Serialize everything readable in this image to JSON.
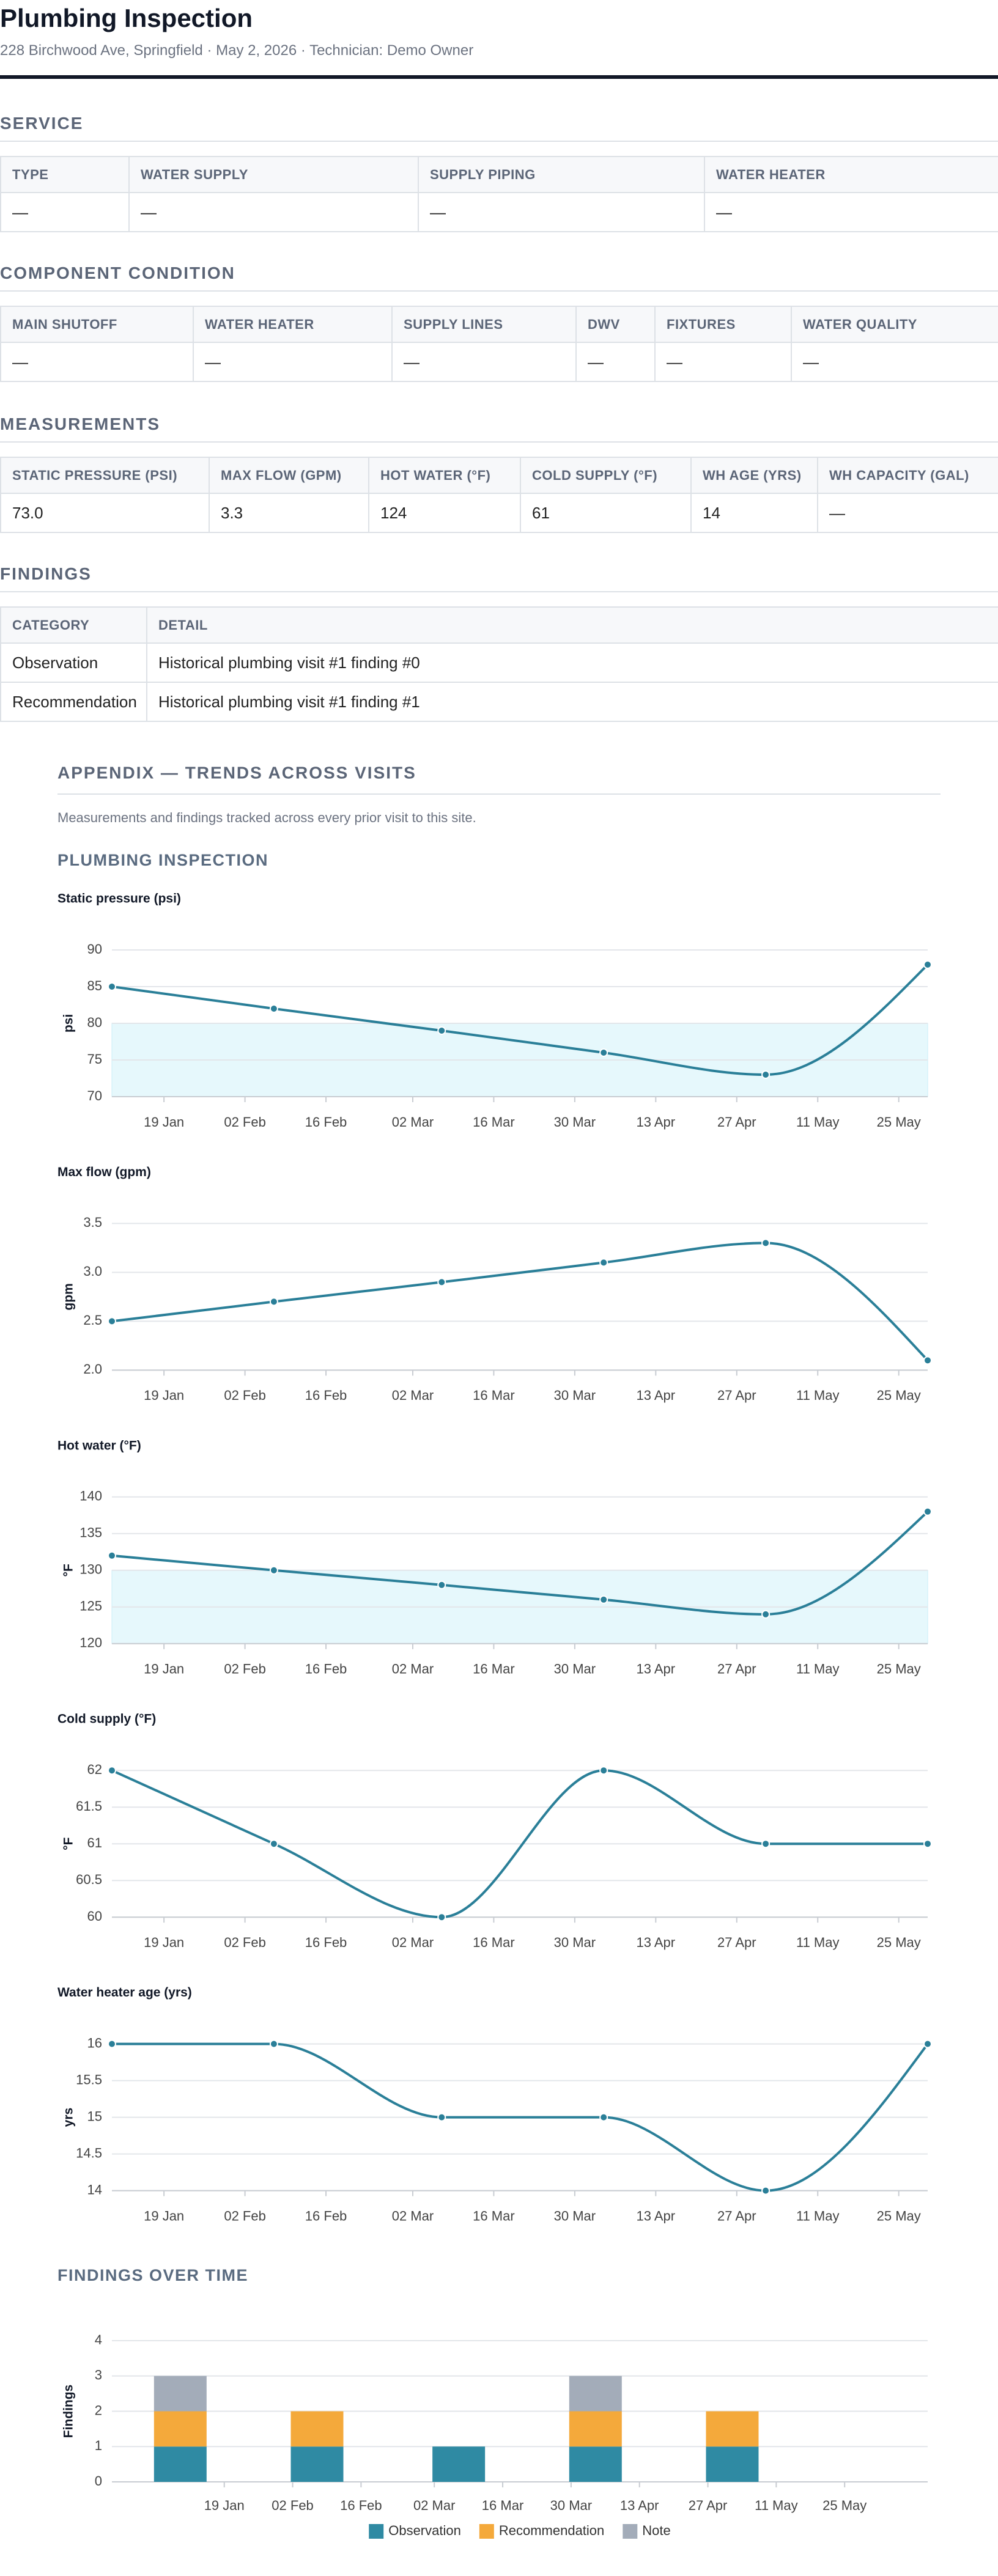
{
  "header": {
    "title": "Plumbing Inspection",
    "subtitle": "228 Birchwood Ave, Springfield · May 2, 2026 · Technician: Demo Owner"
  },
  "tables": [
    {
      "title": "SERVICE",
      "columns": [
        "TYPE",
        "WATER SUPPLY",
        "SUPPLY PIPING",
        "WATER HEATER"
      ],
      "rows": [
        [
          "—",
          "—",
          "—",
          "—"
        ]
      ]
    },
    {
      "title": "COMPONENT CONDITION",
      "columns": [
        "MAIN SHUTOFF",
        "WATER HEATER",
        "SUPPLY LINES",
        "DWV",
        "FIXTURES",
        "WATER QUALITY"
      ],
      "rows": [
        [
          "—",
          "—",
          "—",
          "—",
          "—",
          "—"
        ]
      ]
    },
    {
      "title": "MEASUREMENTS",
      "columns": [
        "STATIC PRESSURE (PSI)",
        "MAX FLOW (GPM)",
        "HOT WATER (°F)",
        "COLD SUPPLY (°F)",
        "WH AGE (YRS)",
        "WH CAPACITY (GAL)"
      ],
      "rows": [
        [
          "73.0",
          "3.3",
          "124",
          "61",
          "14",
          "—"
        ]
      ]
    },
    {
      "title": "FINDINGS",
      "columns": [
        "CATEGORY",
        "DETAIL"
      ],
      "rows": [
        [
          "Observation",
          "Historical plumbing visit #1 finding #0"
        ],
        [
          "Recommendation",
          "Historical plumbing visit #1 finding #1"
        ]
      ]
    }
  ],
  "appendix": {
    "title": "APPENDIX — TRENDS ACROSS VISITS",
    "note": "Measurements and findings tracked across every prior visit to this site.",
    "section": "PLUMBING INSPECTION"
  },
  "chart_data": [
    {
      "type": "line",
      "title": "Static pressure (psi)",
      "y_label": "psi",
      "x": [
        "10 Jan",
        "07 Feb",
        "07 Mar",
        "04 Apr",
        "02 May",
        "30 May"
      ],
      "values": [
        85,
        82,
        79,
        76,
        73,
        88
      ],
      "color": "#2a7f98",
      "xlim": [
        "10 Jan",
        "30 May"
      ],
      "xticks": [
        "19 Jan",
        "02 Feb",
        "16 Feb",
        "02 Mar",
        "16 Mar",
        "30 Mar",
        "13 Apr",
        "27 Apr",
        "11 May",
        "25 May"
      ],
      "ylim": [
        70,
        90
      ],
      "yticks": [
        70,
        75,
        80,
        85,
        90
      ],
      "band": [
        70,
        80
      ],
      "band_color": "#e6f8fc",
      "grid": true
    },
    {
      "type": "line",
      "title": "Max flow (gpm)",
      "y_label": "gpm",
      "x": [
        "10 Jan",
        "07 Feb",
        "07 Mar",
        "04 Apr",
        "02 May",
        "30 May"
      ],
      "values": [
        2.5,
        2.7,
        2.9,
        3.1,
        3.3,
        2.1
      ],
      "color": "#2a7f98",
      "xlim": [
        "10 Jan",
        "30 May"
      ],
      "xticks": [
        "19 Jan",
        "02 Feb",
        "16 Feb",
        "02 Mar",
        "16 Mar",
        "30 Mar",
        "13 Apr",
        "27 Apr",
        "11 May",
        "25 May"
      ],
      "ylim": [
        2,
        3.5
      ],
      "yticks": [
        {
          "value": 2,
          "label": "2.0"
        },
        2.5,
        {
          "value": 3,
          "label": "3.0"
        },
        3.5
      ],
      "grid": true
    },
    {
      "type": "line",
      "title": "Hot water (°F)",
      "y_label": "°F",
      "x": [
        "10 Jan",
        "07 Feb",
        "07 Mar",
        "04 Apr",
        "02 May",
        "30 May"
      ],
      "values": [
        132,
        130,
        128,
        126,
        124,
        138
      ],
      "color": "#2a7f98",
      "xlim": [
        "10 Jan",
        "30 May"
      ],
      "xticks": [
        "19 Jan",
        "02 Feb",
        "16 Feb",
        "02 Mar",
        "16 Mar",
        "30 Mar",
        "13 Apr",
        "27 Apr",
        "11 May",
        "25 May"
      ],
      "ylim": [
        120,
        140
      ],
      "yticks": [
        120,
        125,
        130,
        135,
        140
      ],
      "band": [
        120,
        130
      ],
      "band_color": "#e6f8fc",
      "grid": true
    },
    {
      "type": "line",
      "title": "Cold supply (°F)",
      "y_label": "°F",
      "x": [
        "10 Jan",
        "07 Feb",
        "07 Mar",
        "04 Apr",
        "02 May",
        "30 May"
      ],
      "values": [
        62,
        61,
        60,
        62,
        61,
        61
      ],
      "color": "#2a7f98",
      "xlim": [
        "10 Jan",
        "30 May"
      ],
      "xticks": [
        "19 Jan",
        "02 Feb",
        "16 Feb",
        "02 Mar",
        "16 Mar",
        "30 Mar",
        "13 Apr",
        "27 Apr",
        "11 May",
        "25 May"
      ],
      "ylim": [
        60,
        62
      ],
      "yticks": [
        60,
        60.5,
        61,
        61.5,
        62
      ],
      "grid": true
    },
    {
      "type": "line",
      "title": "Water heater age (yrs)",
      "y_label": "yrs",
      "x": [
        "10 Jan",
        "07 Feb",
        "07 Mar",
        "04 Apr",
        "02 May",
        "30 May"
      ],
      "values": [
        16,
        16,
        15,
        15,
        14,
        16
      ],
      "color": "#2a7f98",
      "xlim": [
        "10 Jan",
        "30 May"
      ],
      "xticks": [
        "19 Jan",
        "02 Feb",
        "16 Feb",
        "02 Mar",
        "16 Mar",
        "30 Mar",
        "13 Apr",
        "27 Apr",
        "11 May",
        "25 May"
      ],
      "ylim": [
        14,
        16
      ],
      "yticks": [
        14,
        14.5,
        15,
        15.5,
        16
      ],
      "grid": true
    },
    {
      "type": "bar",
      "stacked": true,
      "title": "FINDINGS OVER TIME",
      "y_label": "Findings",
      "x": [
        "10 Jan",
        "07 Feb",
        "07 Mar",
        "04 Apr",
        "02 May"
      ],
      "series": [
        {
          "name": "Observation",
          "color": "#2f8aa3",
          "values": [
            1,
            1,
            1,
            1,
            1
          ]
        },
        {
          "name": "Recommendation",
          "color": "#f4a93b",
          "values": [
            1,
            1,
            0,
            1,
            1
          ]
        },
        {
          "name": "Note",
          "color": "#a3acb9",
          "values": [
            1,
            0,
            0,
            1,
            0
          ]
        }
      ],
      "xlim": [
        "27 Dec",
        "11 Jun"
      ],
      "xticks": [
        "19 Jan",
        "02 Feb",
        "16 Feb",
        "02 Mar",
        "16 Mar",
        "30 Mar",
        "13 Apr",
        "27 Apr",
        "11 May",
        "25 May"
      ],
      "ylim": [
        0,
        4
      ],
      "yticks": [
        0,
        1,
        2,
        3,
        4
      ],
      "grid": true,
      "legend": "bottom"
    }
  ]
}
